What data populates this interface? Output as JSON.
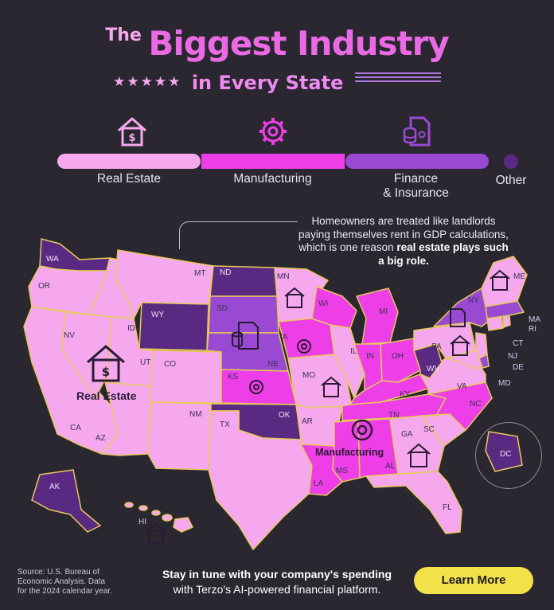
{
  "title": {
    "the": "The",
    "main": "Biggest Industry",
    "subtitle": "in Every State",
    "stars": "★★★★★"
  },
  "legend": {
    "real_estate": "Real Estate",
    "manufacturing": "Manufacturing",
    "finance_line1": "Finance",
    "finance_line2": "& Insurance",
    "other": "Other"
  },
  "colors": {
    "real_estate": "#f6a8ef",
    "manufacturing": "#ee3ee8",
    "finance": "#9a4ad2",
    "other": "#5a2a82"
  },
  "callout": {
    "text": "Homeowners are treated like landlords paying themselves rent in GDP calculations, which is one reason",
    "bold": "real estate plays such a big role."
  },
  "map_labels": {
    "real_estate": "Real Estate",
    "manufacturing": "Manufacturing"
  },
  "states": {
    "WA": "WA",
    "OR": "OR",
    "CA": "CA",
    "NV": "NV",
    "ID": "ID",
    "MT": "MT",
    "WY": "WY",
    "UT": "UT",
    "AZ": "AZ",
    "CO": "CO",
    "NM": "NM",
    "ND": "ND",
    "SD": "SD",
    "NE": "NE",
    "KS": "KS",
    "OK": "OK",
    "TX": "TX",
    "MN": "MN",
    "IA": "IA",
    "MO": "MO",
    "AR": "AR",
    "LA": "LA",
    "WI": "WI",
    "IL": "IL",
    "MI": "MI",
    "IN": "IN",
    "OH": "OH",
    "KY": "KY",
    "TN": "TN",
    "MS": "MS",
    "AL": "AL",
    "GA": "GA",
    "FL": "FL",
    "SC": "SC",
    "NC": "NC",
    "VA": "VA",
    "WV": "WV",
    "PA": "PA",
    "NY": "NY",
    "ME": "ME",
    "MA": "MA",
    "RI": "RI",
    "CT": "CT",
    "NJ": "NJ",
    "DE": "DE",
    "MD": "MD",
    "AK": "AK",
    "HI": "HI",
    "DC": "DC"
  },
  "footer": {
    "source": "Source: U.S. Bureau of Economic Analysis. Data for the 2024 calendar year.",
    "cta_line1": "Stay in tune with your company's spending",
    "cta_line2": "with Terzo's AI-powered financial platform.",
    "button": "Learn More"
  }
}
